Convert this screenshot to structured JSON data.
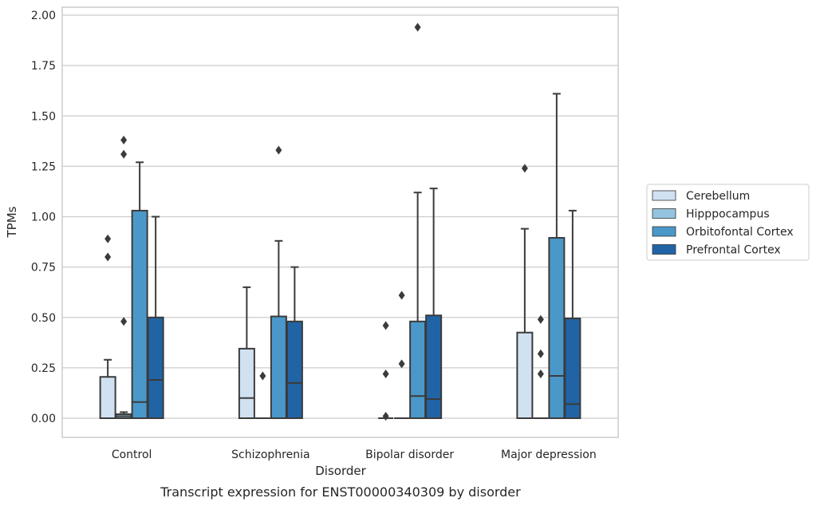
{
  "caption": "Transcript expression for ENST00000340309 by disorder",
  "colors": {
    "Cerebellum": "#d0e1f2",
    "Hipppocampus": "#94c4df",
    "Orbitofontal Cortex": "#4a98c9",
    "Prefrontal Cortex": "#2164a6",
    "line": "#3b3b3b",
    "grid": "#cccccc"
  },
  "chart_data": {
    "type": "boxplot",
    "title": "",
    "xlabel": "Disorder",
    "ylabel": "TPMs",
    "ylim": [
      -0.09,
      2.02
    ],
    "yticks": [
      "0.00",
      "0.25",
      "0.50",
      "0.75",
      "1.00",
      "1.25",
      "1.50",
      "1.75",
      "2.00"
    ],
    "grid": "horizontal",
    "legend_position": "right",
    "categories": [
      "Control",
      "Schizophrenia",
      "Bipolar disorder",
      "Major depression"
    ],
    "series": [
      {
        "name": "Cerebellum",
        "boxes": [
          {
            "whislo": 0,
            "q1": 0,
            "med": 0,
            "q3": 0.205,
            "whishi": 0.29,
            "fliers": [
              0.8,
              0.89
            ]
          },
          {
            "whislo": 0,
            "q1": 0,
            "med": 0.1,
            "q3": 0.345,
            "whishi": 0.65,
            "fliers": []
          },
          {
            "whislo": 0,
            "q1": 0,
            "med": 0,
            "q3": 0,
            "whishi": 0,
            "fliers": [
              0.01,
              0.22,
              0.46
            ]
          },
          {
            "whislo": 0,
            "q1": 0,
            "med": 0,
            "q3": 0.425,
            "whishi": 0.94,
            "fliers": [
              1.24
            ]
          }
        ]
      },
      {
        "name": "Hipppocampus",
        "boxes": [
          {
            "whislo": 0,
            "q1": 0,
            "med": 0.01,
            "q3": 0.02,
            "whishi": 0.03,
            "fliers": [
              0.48,
              1.31,
              1.38
            ]
          },
          {
            "whislo": 0,
            "q1": 0,
            "med": 0,
            "q3": 0,
            "whishi": 0,
            "fliers": [
              0.21
            ]
          },
          {
            "whislo": 0,
            "q1": 0,
            "med": 0,
            "q3": 0,
            "whishi": 0,
            "fliers": [
              0.27,
              0.61
            ]
          },
          {
            "whislo": 0,
            "q1": 0,
            "med": 0,
            "q3": 0,
            "whishi": 0,
            "fliers": [
              0.22,
              0.32,
              0.49
            ]
          }
        ]
      },
      {
        "name": "Orbitofontal Cortex",
        "boxes": [
          {
            "whislo": 0,
            "q1": 0,
            "med": 0.08,
            "q3": 1.03,
            "whishi": 1.27,
            "fliers": []
          },
          {
            "whislo": 0,
            "q1": 0,
            "med": 0,
            "q3": 0.505,
            "whishi": 0.88,
            "fliers": [
              1.33
            ]
          },
          {
            "whislo": 0,
            "q1": 0,
            "med": 0.11,
            "q3": 0.48,
            "whishi": 1.12,
            "fliers": [
              1.94
            ]
          },
          {
            "whislo": 0,
            "q1": 0,
            "med": 0.21,
            "q3": 0.895,
            "whishi": 1.61,
            "fliers": []
          }
        ]
      },
      {
        "name": "Prefrontal Cortex",
        "boxes": [
          {
            "whislo": 0,
            "q1": 0,
            "med": 0.19,
            "q3": 0.5,
            "whishi": 1.0,
            "fliers": []
          },
          {
            "whislo": 0,
            "q1": 0,
            "med": 0.175,
            "q3": 0.48,
            "whishi": 0.75,
            "fliers": []
          },
          {
            "whislo": 0,
            "q1": 0,
            "med": 0.095,
            "q3": 0.51,
            "whishi": 1.14,
            "fliers": []
          },
          {
            "whislo": 0,
            "q1": 0,
            "med": 0.07,
            "q3": 0.495,
            "whishi": 1.03,
            "fliers": []
          }
        ]
      }
    ]
  }
}
